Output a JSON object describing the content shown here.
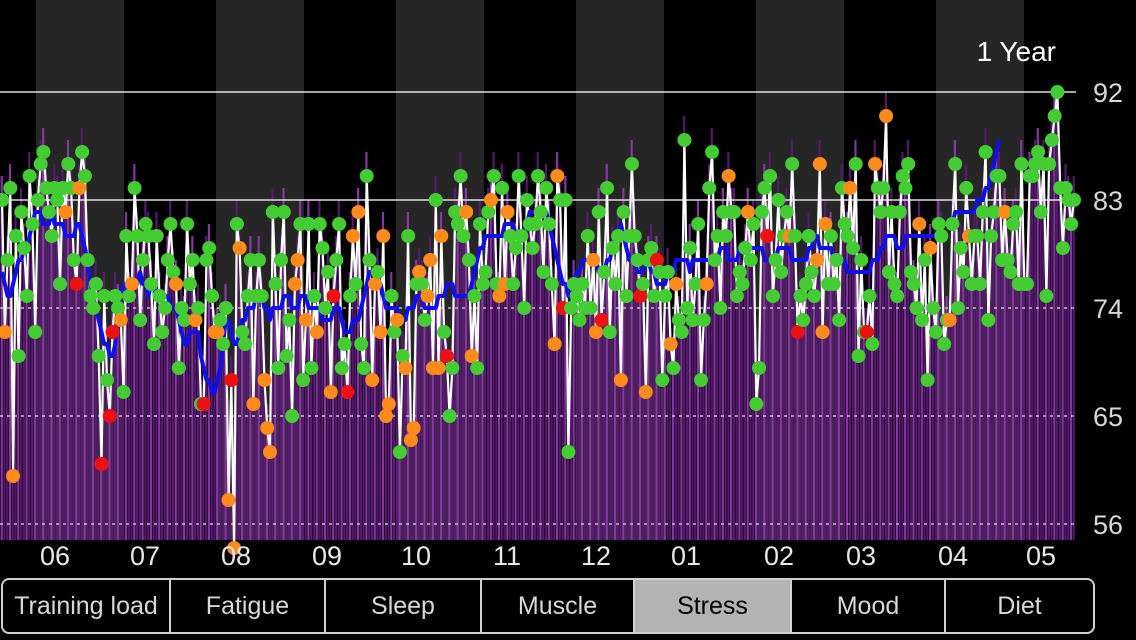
{
  "range_label": "1 Year",
  "tabs": [
    {
      "label": "Training load",
      "active": false
    },
    {
      "label": "Fatigue",
      "active": false
    },
    {
      "label": "Sleep",
      "active": false
    },
    {
      "label": "Muscle",
      "active": false
    },
    {
      "label": "Stress",
      "active": true
    },
    {
      "label": "Mood",
      "active": false
    },
    {
      "label": "Diet",
      "active": false
    }
  ],
  "colors": {
    "background": "#000000",
    "bars": "#5a1a74",
    "bars_highlight": "#8a3aa8",
    "month_band": "#262626",
    "line_daily": "#ffffff",
    "line_average": "#1010ee",
    "dot_good": "#44cc33",
    "dot_mid": "#ff8c1a",
    "dot_bad": "#ee1111",
    "tab_active": "#b3b3b3"
  },
  "chart_data": {
    "type": "line",
    "title": "",
    "xlabel": "",
    "ylabel": "",
    "ylim": [
      56,
      92
    ],
    "y_ticks": [
      "92",
      "83",
      "74",
      "65",
      "56"
    ],
    "x_ticks": [
      "06",
      "07",
      "08",
      "09",
      "10",
      "11",
      "12",
      "01",
      "02",
      "03",
      "04",
      "05"
    ],
    "grid": true,
    "series": [
      {
        "kind": "daily",
        "values": [
          83,
          72,
          78,
          84,
          60,
          80,
          70,
          82,
          79,
          75,
          85,
          81,
          72,
          83,
          86,
          87,
          84,
          82,
          80,
          84,
          83,
          76,
          84,
          82,
          86,
          84,
          78,
          76,
          84,
          87,
          85,
          78,
          75,
          74,
          76,
          70,
          61,
          75,
          68,
          65,
          72,
          75,
          74,
          73,
          67,
          80,
          75,
          76,
          84,
          80,
          73,
          78,
          81,
          80,
          76,
          71,
          80,
          75,
          72,
          74,
          78,
          81,
          77,
          76,
          69,
          74,
          73,
          81,
          76,
          78,
          73,
          74,
          66,
          66,
          78,
          79,
          75,
          72,
          72,
          73,
          71,
          74,
          58,
          68,
          54,
          81,
          79,
          72,
          71,
          75,
          78,
          66,
          75,
          78,
          75,
          68,
          64,
          62,
          82,
          76,
          69,
          78,
          82,
          70,
          73,
          65,
          76,
          78,
          81,
          68,
          73,
          81,
          69,
          75,
          72,
          81,
          79,
          74,
          77,
          67,
          75,
          78,
          81,
          69,
          71,
          67,
          75,
          80,
          76,
          82,
          71,
          69,
          85,
          78,
          68,
          76,
          77,
          72,
          80,
          65,
          66,
          75,
          72,
          73,
          62,
          70,
          69,
          80,
          63,
          64,
          76,
          77,
          76,
          73,
          75,
          78,
          69,
          83,
          69,
          80,
          72,
          70,
          65,
          69,
          82,
          81,
          85,
          80,
          82,
          78,
          70,
          75,
          69,
          81,
          76,
          77,
          82,
          83,
          85,
          76,
          75,
          84,
          76,
          82,
          80,
          76,
          79,
          85,
          80,
          74,
          83,
          81,
          79,
          81,
          85,
          82,
          77,
          84,
          81,
          76,
          71,
          85,
          83,
          74,
          83,
          62,
          74,
          76,
          75,
          73,
          76,
          74,
          80,
          74,
          78,
          72,
          82,
          73,
          77,
          84,
          72,
          79,
          76,
          80,
          68,
          82,
          75,
          80,
          86,
          80,
          78,
          75,
          76,
          67,
          78,
          79,
          75,
          78,
          77,
          68,
          75,
          77,
          71,
          69,
          76,
          73,
          72,
          88,
          74,
          79,
          73,
          76,
          81,
          68,
          73,
          76,
          84,
          87,
          78,
          80,
          74,
          82,
          80,
          85,
          82,
          82,
          75,
          77,
          76,
          79,
          82,
          78,
          81,
          66,
          69,
          82,
          84,
          80,
          85,
          75,
          78,
          83,
          77,
          80,
          82,
          80,
          86,
          80,
          72,
          75,
          73,
          76,
          80,
          77,
          75,
          78,
          86,
          72,
          81,
          76,
          80,
          76,
          78,
          73,
          84,
          81,
          80,
          84,
          79,
          86,
          70,
          78,
          72,
          72,
          75,
          71,
          86,
          84,
          82,
          84,
          90,
          77,
          82,
          76,
          75,
          82,
          85,
          84,
          86,
          77,
          76,
          74,
          81,
          73,
          78,
          68,
          79,
          74,
          72,
          81,
          80,
          71,
          73,
          73,
          81,
          86,
          74,
          79,
          77,
          84,
          80,
          76,
          80,
          80,
          76,
          82,
          87,
          73,
          80,
          82,
          85,
          85,
          78,
          82,
          78,
          77,
          81,
          82,
          76,
          86,
          76,
          76,
          85,
          85,
          86,
          87,
          82,
          86,
          75,
          86,
          88,
          90,
          92,
          84,
          79,
          84,
          83,
          81,
          83
        ],
        "status": [
          "g",
          "o",
          "g",
          "g",
          "o",
          "g",
          "g",
          "g",
          "g",
          "g",
          "g",
          "g",
          "g",
          "g",
          "g",
          "g",
          "g",
          "g",
          "g",
          "g",
          "g",
          "g",
          "g",
          "o",
          "g",
          "g",
          "g",
          "r",
          "o",
          "g",
          "g",
          "g",
          "g",
          "g",
          "g",
          "g",
          "r",
          "g",
          "g",
          "r",
          "r",
          "g",
          "g",
          "o",
          "g",
          "g",
          "g",
          "o",
          "g",
          "g",
          "g",
          "g",
          "g",
          "g",
          "g",
          "g",
          "g",
          "g",
          "g",
          "g",
          "g",
          "g",
          "g",
          "o",
          "g",
          "g",
          "g",
          "g",
          "g",
          "g",
          "o",
          "g",
          "g",
          "r",
          "g",
          "g",
          "g",
          "o",
          "o",
          "g",
          "g",
          "g",
          "o",
          "r",
          "o",
          "g",
          "o",
          "g",
          "g",
          "g",
          "g",
          "o",
          "g",
          "g",
          "g",
          "o",
          "o",
          "o",
          "g",
          "g",
          "g",
          "g",
          "g",
          "g",
          "g",
          "g",
          "o",
          "o",
          "g",
          "g",
          "o",
          "g",
          "g",
          "g",
          "o",
          "g",
          "g",
          "g",
          "g",
          "o",
          "r",
          "g",
          "g",
          "g",
          "g",
          "r",
          "g",
          "o",
          "g",
          "o",
          "g",
          "g",
          "g",
          "g",
          "o",
          "o",
          "g",
          "o",
          "o",
          "o",
          "o",
          "g",
          "g",
          "o",
          "g",
          "g",
          "o",
          "g",
          "o",
          "o",
          "g",
          "o",
          "g",
          "g",
          "o",
          "o",
          "o",
          "g",
          "o",
          "o",
          "g",
          "r",
          "g",
          "g",
          "g",
          "g",
          "g",
          "g",
          "o",
          "g",
          "o",
          "g",
          "g",
          "g",
          "g",
          "g",
          "g",
          "o",
          "g",
          "g",
          "o",
          "g",
          "o",
          "o",
          "g",
          "g",
          "g",
          "g",
          "g",
          "g",
          "g",
          "g",
          "g",
          "g",
          "g",
          "g",
          "g",
          "g",
          "g",
          "g",
          "o",
          "o",
          "g",
          "r",
          "g",
          "g",
          "g",
          "g",
          "g",
          "g",
          "g",
          "g",
          "g",
          "g",
          "o",
          "o",
          "g",
          "r",
          "g",
          "g",
          "g",
          "g",
          "g",
          "g",
          "o",
          "g",
          "g",
          "g",
          "g",
          "g",
          "g",
          "r",
          "g",
          "o",
          "g",
          "g",
          "g",
          "r",
          "g",
          "g",
          "g",
          "g",
          "o",
          "g",
          "o",
          "g",
          "g",
          "g",
          "g",
          "g",
          "g",
          "g",
          "g",
          "g",
          "g",
          "o",
          "g",
          "g",
          "g",
          "g",
          "g",
          "g",
          "g",
          "o",
          "g",
          "g",
          "g",
          "g",
          "g",
          "g",
          "o",
          "g",
          "g",
          "g",
          "g",
          "g",
          "g",
          "r",
          "g",
          "g",
          "g",
          "g",
          "g",
          "g",
          "g",
          "o",
          "g",
          "g",
          "r",
          "g",
          "g",
          "g",
          "g",
          "g",
          "g",
          "o",
          "o",
          "o",
          "o",
          "g",
          "g",
          "g",
          "g",
          "g",
          "g",
          "g",
          "g",
          "o",
          "g",
          "g",
          "g",
          "g",
          "g",
          "r",
          "g",
          "g",
          "o",
          "g",
          "g",
          "g",
          "o",
          "g",
          "g",
          "g",
          "g",
          "g",
          "g",
          "g",
          "g",
          "g",
          "g",
          "g",
          "o",
          "g",
          "g",
          "g",
          "o",
          "g",
          "g",
          "g",
          "g",
          "g",
          "g",
          "o",
          "g",
          "g",
          "g",
          "g",
          "g",
          "g",
          "o",
          "g",
          "g",
          "g",
          "g",
          "g",
          "g",
          "g",
          "g",
          "g",
          "g",
          "g",
          "g",
          "o",
          "g",
          "g",
          "g",
          "g",
          "g",
          "g",
          "g",
          "g",
          "g",
          "g",
          "g",
          "g"
        ]
      },
      {
        "kind": "average",
        "values": [
          77,
          76,
          75,
          75,
          76,
          77,
          78,
          78,
          79,
          79,
          80,
          81,
          82,
          82,
          82,
          81,
          81,
          81,
          82,
          81,
          81,
          81,
          81,
          80,
          80,
          80,
          80,
          81,
          81,
          80,
          79,
          78,
          76,
          75,
          74,
          73,
          72,
          71,
          71,
          70,
          70,
          71,
          74,
          75,
          76,
          75,
          75,
          75,
          76,
          76,
          77,
          76,
          76,
          75,
          76,
          76,
          75,
          75,
          75,
          75,
          75,
          74,
          74,
          74,
          73,
          72,
          71,
          71,
          72,
          72,
          72,
          72,
          70,
          69,
          68,
          68,
          67,
          67,
          68,
          69,
          71,
          73,
          73,
          72,
          71,
          71,
          72,
          73,
          73,
          74,
          74,
          74,
          75,
          75,
          75,
          74,
          74,
          73,
          74,
          74,
          74,
          74,
          75,
          75,
          75,
          74,
          74,
          74,
          75,
          75,
          75,
          74,
          74,
          74,
          74,
          74,
          73,
          73,
          73,
          73,
          74,
          74,
          74,
          73,
          72,
          72,
          72,
          73,
          73,
          73,
          74,
          75,
          76,
          77,
          77,
          77,
          76,
          76,
          75,
          74,
          74,
          74,
          74,
          74,
          73,
          73,
          73,
          74,
          74,
          74,
          75,
          75,
          75,
          74,
          74,
          74,
          74,
          74,
          75,
          75,
          75,
          76,
          76,
          76,
          75,
          75,
          75,
          75,
          75,
          75,
          76,
          77,
          78,
          79,
          79,
          80,
          80,
          80,
          80,
          80,
          80,
          80,
          81,
          81,
          81,
          81,
          80,
          80,
          80,
          80,
          81,
          82,
          82,
          82,
          82,
          82,
          82,
          82,
          81,
          80,
          79,
          78,
          77,
          76,
          76,
          75,
          75,
          76,
          77,
          77,
          78,
          78,
          78,
          78,
          78,
          78,
          77,
          77,
          77,
          78,
          78,
          79,
          79,
          80,
          81,
          80,
          79,
          78,
          78,
          78,
          77,
          77,
          77,
          78,
          78,
          77,
          77,
          76,
          76,
          76,
          76,
          77,
          77,
          77,
          78,
          78,
          78,
          78,
          78,
          77,
          78,
          78,
          78,
          78,
          78,
          78,
          78,
          78,
          78,
          78,
          79,
          79,
          79,
          78,
          78,
          78,
          78,
          79,
          79,
          79,
          79,
          79,
          79,
          79,
          79,
          79,
          78,
          78,
          78,
          78,
          78,
          79,
          79,
          79,
          79,
          79,
          78,
          78,
          78,
          78,
          78,
          78,
          79,
          79,
          80,
          80,
          79,
          79,
          79,
          79,
          79,
          78,
          78,
          78,
          78,
          78,
          77,
          77,
          77,
          77,
          77,
          77,
          77,
          77,
          77,
          78,
          78,
          78,
          79,
          79,
          80,
          80,
          80,
          80,
          79,
          79,
          79,
          80,
          80,
          80,
          80,
          80,
          80,
          80,
          80,
          80,
          80,
          80,
          80,
          81,
          81,
          81,
          81,
          81,
          81,
          82,
          82,
          82,
          82,
          82,
          82,
          82,
          82,
          83,
          83,
          83,
          84,
          84,
          85,
          86,
          87,
          88
        ]
      }
    ]
  }
}
